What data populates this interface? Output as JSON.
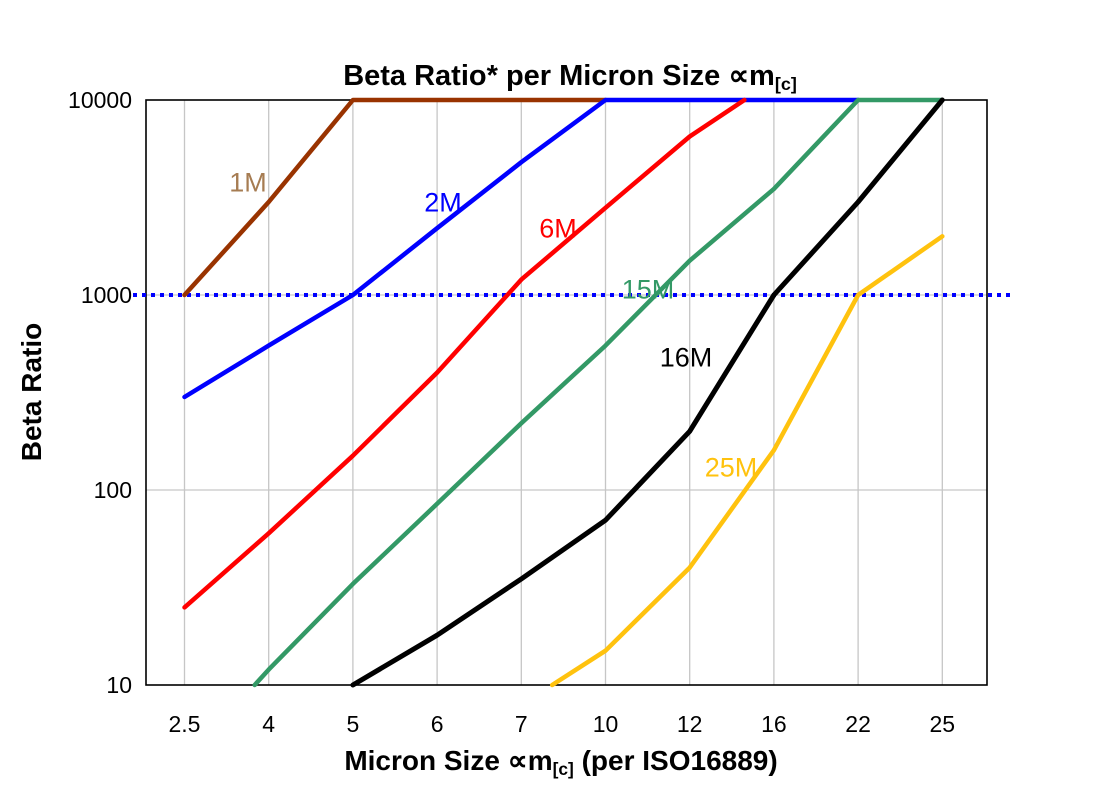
{
  "title": {
    "main": "Beta Ratio* per Micron Size ∝m",
    "subscript": "[c]"
  },
  "y_axis": {
    "title": "Beta Ratio",
    "tick_labels": [
      "10000",
      "1000",
      "100",
      "10"
    ],
    "tick_values": [
      10000,
      1000,
      100,
      10
    ]
  },
  "x_axis": {
    "title_prefix": "Micron Size ∝m",
    "title_subscript": "[c]",
    "title_suffix": " (per ISO16889)",
    "tick_labels": [
      "2.5",
      "4",
      "5",
      "6",
      "7",
      "10",
      "12",
      "16",
      "22",
      "25"
    ]
  },
  "colors": {
    "grid": "#c6c6c6",
    "frame": "#000000",
    "reference_line": "#0000ff",
    "background": "#ffffff"
  },
  "chart_data": {
    "type": "line",
    "title": "Beta Ratio* per Micron Size ∝m[c]",
    "xlabel": "Micron Size ∝m[c] (per ISO16889)",
    "ylabel": "Beta Ratio",
    "x_categories": [
      2.5,
      4,
      5,
      6,
      7,
      10,
      12,
      16,
      22,
      25
    ],
    "y_scale": "log",
    "ylim": [
      10,
      10000
    ],
    "grid": "on",
    "legend_position": "inline-labels",
    "reference_line": {
      "y": 1000,
      "style": "dotted",
      "color": "#0000ff"
    },
    "series": [
      {
        "name": "1M",
        "color": "#993300",
        "label_color": "#a67c52",
        "points": [
          [
            2.5,
            1000
          ],
          [
            4,
            3000
          ],
          [
            5,
            10000
          ],
          [
            10,
            10000
          ]
        ],
        "label_pos": [
          248,
          183
        ]
      },
      {
        "name": "2M",
        "color": "#0000ff",
        "label_color": "#0000ff",
        "points": [
          [
            2.5,
            300
          ],
          [
            4,
            550
          ],
          [
            5,
            1000
          ],
          [
            6,
            2200
          ],
          [
            7,
            4800
          ],
          [
            10,
            10000
          ],
          [
            22,
            10000
          ]
        ],
        "label_pos": [
          443,
          203
        ]
      },
      {
        "name": "6M",
        "color": "#ff0000",
        "label_color": "#ff0000",
        "points": [
          [
            2.5,
            25
          ],
          [
            4,
            60
          ],
          [
            5,
            150
          ],
          [
            6,
            400
          ],
          [
            7,
            1200
          ],
          [
            10,
            2800
          ],
          [
            12,
            6500
          ],
          [
            14.6,
            10000
          ]
        ],
        "label_pos": [
          558,
          229
        ]
      },
      {
        "name": "15M",
        "color": "#339966",
        "label_color": "#339966",
        "points": [
          [
            3.75,
            10
          ],
          [
            4,
            12
          ],
          [
            5,
            33
          ],
          [
            6,
            85
          ],
          [
            7,
            220
          ],
          [
            10,
            550
          ],
          [
            12,
            1500
          ],
          [
            16,
            3500
          ],
          [
            22,
            10000
          ],
          [
            25,
            10000
          ]
        ],
        "label_pos": [
          648,
          290
        ]
      },
      {
        "name": "16M",
        "color": "#000000",
        "label_color": "#000000",
        "points": [
          [
            5,
            10
          ],
          [
            6,
            18
          ],
          [
            7,
            35
          ],
          [
            10,
            70
          ],
          [
            12,
            200
          ],
          [
            16,
            1000
          ],
          [
            22,
            3000
          ],
          [
            25,
            10000
          ]
        ],
        "label_pos": [
          686,
          358
        ]
      },
      {
        "name": "25M",
        "color": "#ffc20e",
        "label_color": "#ffc20e",
        "points": [
          [
            8.1,
            10
          ],
          [
            10,
            15
          ],
          [
            12,
            40
          ],
          [
            16,
            160
          ],
          [
            22,
            1000
          ],
          [
            25,
            2000
          ]
        ],
        "label_pos": [
          731,
          468
        ]
      }
    ]
  }
}
